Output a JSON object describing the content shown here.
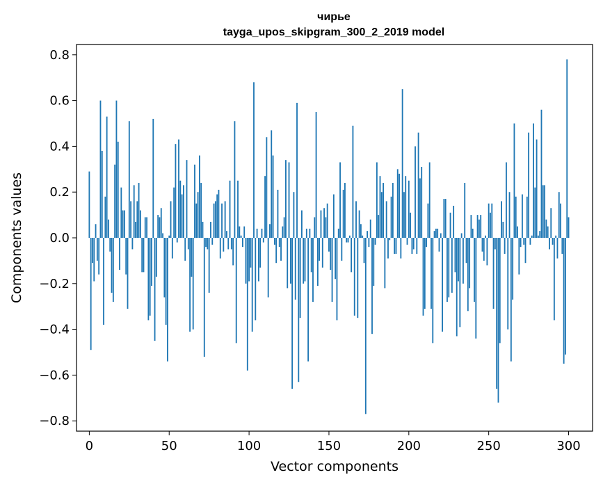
{
  "chart_data": {
    "type": "bar",
    "title": "чирье",
    "subtitle": "tayga_upos_skipgram_300_2_2019 model",
    "xlabel": "Vector components",
    "ylabel": "Components values",
    "xlim": [
      -8,
      315
    ],
    "ylim": [
      -0.845,
      0.845
    ],
    "xticks": [
      0,
      50,
      100,
      150,
      200,
      250,
      300
    ],
    "xtick_labels": [
      "0",
      "50",
      "100",
      "150",
      "200",
      "250",
      "300"
    ],
    "yticks": [
      -0.8,
      -0.6,
      -0.4,
      -0.2,
      0.0,
      0.2,
      0.4,
      0.6,
      0.8
    ],
    "ytick_labels": [
      "−0.8",
      "−0.6",
      "−0.4",
      "−0.2",
      "0.0",
      "0.2",
      "0.4",
      "0.6",
      "0.8"
    ],
    "bar_color": "#1f77b4",
    "grid": false,
    "values": [
      0.29,
      -0.49,
      -0.11,
      -0.19,
      0.06,
      -0.1,
      -0.16,
      0.6,
      0.38,
      -0.38,
      0.18,
      0.53,
      0.08,
      -0.06,
      -0.24,
      -0.28,
      0.32,
      0.6,
      0.42,
      -0.14,
      0.22,
      0.12,
      0.12,
      -0.16,
      -0.31,
      0.51,
      0.16,
      -0.05,
      0.23,
      0.07,
      0.16,
      0.24,
      0.12,
      -0.15,
      -0.15,
      0.09,
      0.09,
      -0.36,
      -0.34,
      -0.21,
      0.52,
      -0.45,
      -0.17,
      0.1,
      0.09,
      0.13,
      0.02,
      -0.26,
      -0.38,
      -0.54,
      0.01,
      0.16,
      -0.09,
      0.22,
      0.41,
      -0.02,
      0.43,
      0.25,
      0.19,
      0.23,
      -0.1,
      0.34,
      -0.05,
      -0.41,
      -0.17,
      -0.4,
      0.32,
      0.15,
      0.2,
      0.36,
      0.24,
      0.07,
      -0.52,
      -0.04,
      -0.05,
      -0.24,
      0.07,
      -0.03,
      0.15,
      0.16,
      0.19,
      0.21,
      -0.09,
      0.15,
      -0.06,
      0.16,
      0.03,
      -0.05,
      0.25,
      -0.05,
      -0.12,
      0.51,
      -0.46,
      0.25,
      0.05,
      0.01,
      -0.04,
      0.05,
      -0.2,
      -0.58,
      -0.19,
      -0.13,
      -0.41,
      0.68,
      -0.36,
      0.04,
      -0.19,
      -0.13,
      0.04,
      -0.02,
      0.27,
      0.44,
      -0.26,
      0.06,
      0.47,
      0.36,
      -0.03,
      -0.11,
      0.21,
      -0.04,
      -0.1,
      0.05,
      0.09,
      0.34,
      -0.22,
      0.33,
      -0.2,
      -0.66,
      0.2,
      -0.27,
      0.59,
      -0.63,
      -0.35,
      0.12,
      -0.2,
      -0.19,
      0.04,
      -0.54,
      0.04,
      -0.15,
      -0.28,
      0.09,
      0.55,
      -0.21,
      -0.1,
      0.12,
      -0.13,
      0.13,
      0.09,
      0.15,
      -0.06,
      -0.14,
      -0.28,
      0.19,
      -0.18,
      -0.36,
      0.04,
      0.33,
      -0.1,
      0.21,
      0.24,
      -0.02,
      -0.02,
      0.01,
      -0.15,
      0.49,
      -0.34,
      0.16,
      -0.35,
      0.12,
      0.06,
      0.01,
      -0.11,
      -0.77,
      0.03,
      -0.04,
      0.08,
      -0.42,
      -0.21,
      -0.03,
      0.33,
      0.1,
      0.27,
      0.2,
      0.24,
      -0.22,
      0.16,
      -0.09,
      -0.01,
      0.18,
      0.24,
      -0.07,
      -0.07,
      0.3,
      0.28,
      -0.09,
      0.65,
      0.2,
      0.27,
      -0.03,
      0.25,
      0.11,
      -0.07,
      -0.05,
      0.4,
      -0.07,
      0.46,
      0.26,
      0.31,
      -0.34,
      -0.31,
      -0.04,
      0.15,
      0.33,
      -0.31,
      -0.46,
      0.03,
      0.04,
      0.04,
      -0.06,
      0.02,
      -0.41,
      0.17,
      0.17,
      -0.28,
      -0.26,
      0.11,
      -0.24,
      0.14,
      -0.15,
      -0.43,
      -0.19,
      -0.39,
      0.02,
      -0.2,
      0.24,
      -0.11,
      -0.32,
      -0.22,
      0.1,
      0.04,
      -0.28,
      -0.44,
      0.1,
      0.08,
      0.1,
      -0.06,
      -0.1,
      0.01,
      -0.12,
      0.15,
      0.11,
      0.15,
      -0.31,
      -0.05,
      -0.66,
      -0.72,
      -0.46,
      0.16,
      0.07,
      -0.07,
      0.33,
      -0.4,
      0.2,
      -0.54,
      -0.27,
      0.5,
      0.18,
      0.05,
      -0.16,
      -0.04,
      0.19,
      -0.03,
      -0.11,
      0.18,
      0.46,
      -0.03,
      0.01,
      0.5,
      0.22,
      0.43,
      0.01,
      0.03,
      0.56,
      0.23,
      0.23,
      0.08,
      0.05,
      -0.05,
      0.13,
      -0.03,
      -0.36,
      0.01,
      -0.09,
      0.2,
      0.15,
      -0.07,
      -0.55,
      -0.51,
      0.78,
      0.09
    ]
  }
}
